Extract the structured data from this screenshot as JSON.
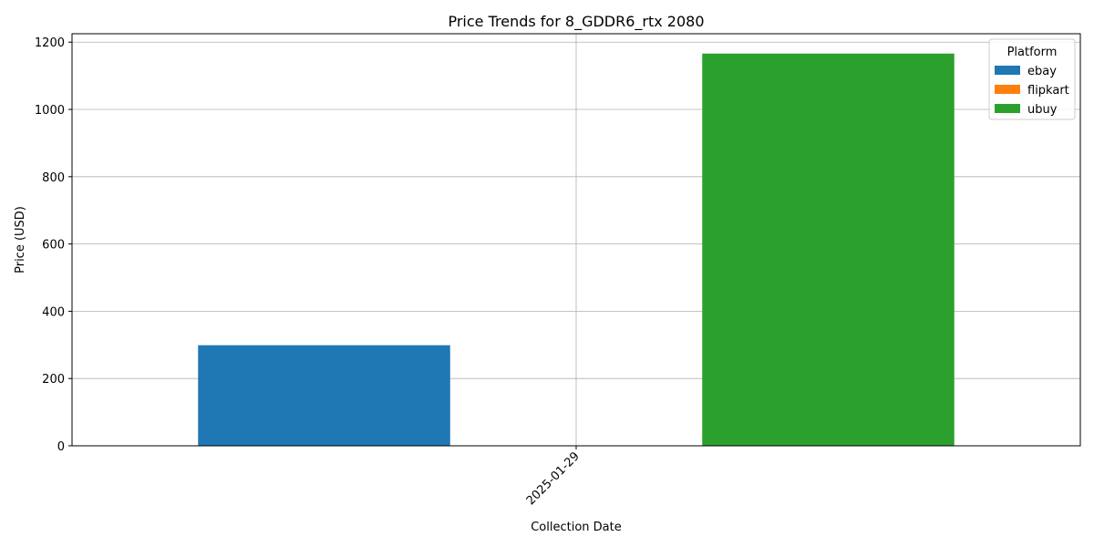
{
  "chart_data": {
    "type": "bar",
    "title": "Price Trends for 8_GDDR6_rtx 2080",
    "xlabel": "Collection Date",
    "ylabel": "Price (USD)",
    "categories": [
      "2025-01-29"
    ],
    "series": [
      {
        "name": "ebay",
        "values": [
          299
        ],
        "color": "#1f77b4"
      },
      {
        "name": "flipkart",
        "values": [
          0
        ],
        "color": "#ff7f0e"
      },
      {
        "name": "ubuy",
        "values": [
          1166
        ],
        "color": "#2ca02c"
      }
    ],
    "ylim": [
      0,
      1225
    ],
    "yticks": [
      0,
      200,
      400,
      600,
      800,
      1000,
      1200
    ],
    "grid": true,
    "legend": {
      "title": "Platform",
      "placement": "top-right"
    }
  }
}
